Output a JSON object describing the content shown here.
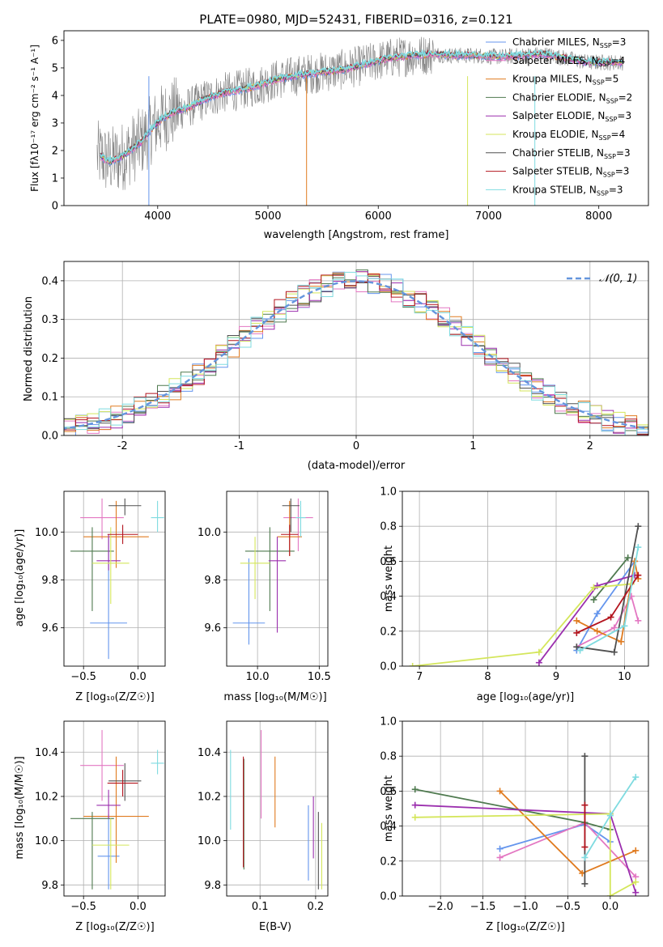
{
  "colors": {
    "chabrier_miles": "#6495ed",
    "salpeter_miles": "#e377c2",
    "kroupa_miles": "#e07b20",
    "chabrier_elodie": "#4f7a4f",
    "salpeter_elodie": "#9b2fae",
    "kroupa_elodie": "#d4e65b",
    "chabrier_stelib": "#505050",
    "salpeter_stelib": "#b3141e",
    "kroupa_stelib": "#7fdbe0",
    "gaussian": "#6495dd"
  },
  "chart_data": [
    {
      "id": "spectrum",
      "type": "line",
      "title": "PLATE=0980, MJD=52431, FIBERID=0316, z=0.121",
      "xlabel": "wavelength [Angstrom, rest frame]",
      "ylabel": "Flux [fλ10⁻¹⁷ erg cm⁻² s⁻¹ A⁻¹]",
      "xlim": [
        3150,
        8450
      ],
      "ylim": [
        0,
        6.35
      ],
      "xticks": [
        4000,
        5000,
        6000,
        7000,
        8000
      ],
      "yticks": [
        0,
        1,
        2,
        3,
        4,
        5,
        6
      ],
      "continuum_x": [
        3480,
        3550,
        3650,
        3750,
        3850,
        3950,
        4050,
        4150,
        4300,
        4450,
        4600,
        4750,
        4900,
        5100,
        5300,
        5500,
        5700,
        5900,
        6100,
        6300,
        6500,
        6700,
        6900,
        7100,
        7300,
        7500,
        7700,
        7900,
        8200
      ],
      "continuum_y": [
        1.8,
        1.6,
        1.7,
        2.0,
        2.3,
        2.8,
        3.2,
        3.4,
        3.6,
        3.9,
        4.1,
        4.2,
        4.35,
        4.6,
        4.75,
        4.85,
        4.95,
        5.15,
        5.35,
        5.45,
        5.5,
        5.45,
        5.45,
        5.4,
        5.45,
        5.5,
        5.35,
        5.2,
        5.2
      ],
      "legend_position": "upper-right",
      "legend": [
        {
          "label": "Chabrier MILES, N",
          "sub": "SSP",
          "suffix": "=3",
          "color": "#6495ed"
        },
        {
          "label": "Salpeter MILES, N",
          "sub": "SSP",
          "suffix": "=4",
          "color": "#e377c2"
        },
        {
          "label": "Kroupa MILES, N",
          "sub": "SSP",
          "suffix": "=5",
          "color": "#e07b20"
        },
        {
          "label": "Chabrier ELODIE, N",
          "sub": "SSP",
          "suffix": "=2",
          "color": "#4f7a4f"
        },
        {
          "label": "Salpeter ELODIE, N",
          "sub": "SSP",
          "suffix": "=3",
          "color": "#9b2fae"
        },
        {
          "label": "Kroupa ELODIE, N",
          "sub": "SSP",
          "suffix": "=4",
          "color": "#d4e65b"
        },
        {
          "label": "Chabrier STELIB, N",
          "sub": "SSP",
          "suffix": "=3",
          "color": "#505050"
        },
        {
          "label": "Salpeter STELIB, N",
          "sub": "SSP",
          "suffix": "=3",
          "color": "#b3141e"
        },
        {
          "label": "Kroupa STELIB, N",
          "sub": "SSP",
          "suffix": "=3",
          "color": "#7fdbe0"
        }
      ]
    },
    {
      "id": "residuals",
      "type": "bar",
      "xlabel": "(data-model)/error",
      "ylabel": "Normed distribution",
      "xlim": [
        -2.5,
        2.5
      ],
      "ylim": [
        0,
        0.45
      ],
      "xticks": [
        -2,
        -1,
        0,
        1,
        2
      ],
      "yticks": [
        0.0,
        0.1,
        0.2,
        0.3,
        0.4
      ],
      "bin_width": 0.1,
      "grid": true,
      "gaussian_label": "𝒩(0, 1)",
      "legend_position": "upper-right"
    },
    {
      "id": "age_vs_z",
      "type": "scatter",
      "xlabel": "Z [log₁₀(Z/Z☉)]",
      "ylabel": "age  [log₁₀(age/yr)]",
      "xlim": [
        -0.68,
        0.25
      ],
      "ylim": [
        9.44,
        10.17
      ],
      "xticks": [
        -0.5,
        0.0
      ],
      "xticklabels": [
        "−0.5",
        "0.0"
      ],
      "yticks": [
        9.6,
        9.8,
        10.0
      ],
      "points": [
        {
          "x": -0.27,
          "y": 9.62,
          "xerr": 0.17,
          "ylo": 9.47,
          "yhi": 9.98,
          "color": "#6495ed"
        },
        {
          "x": -0.33,
          "y": 10.06,
          "xerr": 0.2,
          "ylo": 9.97,
          "yhi": 10.14,
          "color": "#e377c2"
        },
        {
          "x": -0.2,
          "y": 9.98,
          "xerr": 0.3,
          "ylo": 9.85,
          "yhi": 10.13,
          "color": "#e07b20"
        },
        {
          "x": -0.42,
          "y": 9.92,
          "xerr": 0.2,
          "ylo": 9.67,
          "yhi": 10.02,
          "color": "#4f7a4f"
        },
        {
          "x": -0.27,
          "y": 9.88,
          "xerr": 0.11,
          "ylo": 9.84,
          "yhi": 9.99,
          "color": "#9b2fae"
        },
        {
          "x": -0.25,
          "y": 9.87,
          "xerr": 0.17,
          "ylo": 9.7,
          "yhi": 10.02,
          "color": "#d4e65b"
        },
        {
          "x": -0.12,
          "y": 10.11,
          "xerr": 0.15,
          "ylo": 10.07,
          "yhi": 10.14,
          "color": "#505050"
        },
        {
          "x": -0.14,
          "y": 9.99,
          "xerr": 0.14,
          "ylo": 9.95,
          "yhi": 10.03,
          "color": "#b3141e"
        },
        {
          "x": 0.18,
          "y": 10.06,
          "xerr": 0.06,
          "ylo": 10.0,
          "yhi": 10.13,
          "color": "#7fdbe0"
        }
      ]
    },
    {
      "id": "age_vs_mass",
      "type": "scatter",
      "xlabel": "mass [log₁₀(M/M☉)]",
      "ylabel": "",
      "xlim": [
        9.75,
        10.57
      ],
      "ylim": [
        9.44,
        10.17
      ],
      "xticks": [
        10.0,
        10.5
      ],
      "xticklabels": [
        "10.0",
        "10.5"
      ],
      "yticks": [
        9.6,
        9.8,
        10.0
      ],
      "points": [
        {
          "x": 9.93,
          "y": 9.62,
          "xerr": 0.13,
          "ylo": 9.53,
          "yhi": 9.89,
          "color": "#6495ed"
        },
        {
          "x": 10.33,
          "y": 10.06,
          "xerr": 0.12,
          "ylo": 9.92,
          "yhi": 10.14,
          "color": "#e377c2"
        },
        {
          "x": 10.26,
          "y": 9.98,
          "xerr": 0.1,
          "ylo": 9.9,
          "yhi": 10.13,
          "color": "#e07b20"
        },
        {
          "x": 10.1,
          "y": 9.92,
          "xerr": 0.2,
          "ylo": 9.67,
          "yhi": 10.02,
          "color": "#4f7a4f"
        },
        {
          "x": 10.16,
          "y": 9.88,
          "xerr": 0.07,
          "ylo": 9.58,
          "yhi": 9.98,
          "color": "#9b2fae"
        },
        {
          "x": 9.98,
          "y": 9.87,
          "xerr": 0.12,
          "ylo": 9.72,
          "yhi": 9.98,
          "color": "#d4e65b"
        },
        {
          "x": 10.27,
          "y": 10.11,
          "xerr": 0.07,
          "ylo": 10.0,
          "yhi": 10.14,
          "color": "#505050"
        },
        {
          "x": 10.26,
          "y": 9.99,
          "xerr": 0.07,
          "ylo": 9.9,
          "yhi": 10.03,
          "color": "#b3141e"
        },
        {
          "x": 10.35,
          "y": 10.06,
          "xerr": 0.04,
          "ylo": 9.98,
          "yhi": 10.13,
          "color": "#7fdbe0"
        }
      ]
    },
    {
      "id": "weight_vs_age",
      "type": "line",
      "xlabel": "age  [log₁₀(age/yr)]",
      "ylabel": "mass weight",
      "xlim": [
        6.75,
        10.35
      ],
      "ylim": [
        0,
        1.0
      ],
      "xticks": [
        7,
        8,
        9,
        10
      ],
      "yticks": [
        0.0,
        0.2,
        0.4,
        0.6,
        0.8,
        1.0
      ],
      "series": [
        {
          "color": "#6495ed",
          "x": [
            9.3,
            9.6,
            10.15
          ],
          "y": [
            0.09,
            0.3,
            0.6
          ]
        },
        {
          "color": "#e377c2",
          "x": [
            9.3,
            9.85,
            10.1,
            10.2
          ],
          "y": [
            0.11,
            0.22,
            0.4,
            0.26
          ]
        },
        {
          "color": "#e07b20",
          "x": [
            9.3,
            9.6,
            9.95,
            10.15,
            10.2
          ],
          "y": [
            0.26,
            0.2,
            0.14,
            0.6,
            0.5
          ]
        },
        {
          "color": "#4f7a4f",
          "x": [
            9.55,
            10.05
          ],
          "y": [
            0.38,
            0.62
          ]
        },
        {
          "color": "#9b2fae",
          "x": [
            8.75,
            9.6,
            10.15
          ],
          "y": [
            0.02,
            0.46,
            0.52
          ]
        },
        {
          "color": "#d4e65b",
          "x": [
            6.9,
            8.75,
            9.55,
            10.1
          ],
          "y": [
            0.0,
            0.08,
            0.45,
            0.47
          ]
        },
        {
          "color": "#505050",
          "x": [
            9.3,
            9.85,
            10.2
          ],
          "y": [
            0.11,
            0.08,
            0.8
          ]
        },
        {
          "color": "#b3141e",
          "x": [
            9.3,
            9.8,
            10.2
          ],
          "y": [
            0.19,
            0.28,
            0.52
          ]
        },
        {
          "color": "#7fdbe0",
          "x": [
            9.35,
            10.0,
            10.2
          ],
          "y": [
            0.09,
            0.23,
            0.68
          ]
        }
      ]
    },
    {
      "id": "mass_vs_z",
      "type": "scatter",
      "xlabel": "Z [log₁₀(Z/Z☉)]",
      "ylabel": "mass [log₁₀(M/M☉)]",
      "xlim": [
        -0.68,
        0.25
      ],
      "ylim": [
        9.75,
        10.54
      ],
      "xticks": [
        -0.5,
        0.0
      ],
      "xticklabels": [
        "−0.5",
        "0.0"
      ],
      "yticks": [
        9.8,
        10.0,
        10.2,
        10.4
      ],
      "points": [
        {
          "x": -0.27,
          "y": 9.93,
          "xerr": 0.1,
          "ylo": 9.78,
          "yhi": 10.12,
          "color": "#6495ed"
        },
        {
          "x": -0.33,
          "y": 10.34,
          "xerr": 0.2,
          "ylo": 10.18,
          "yhi": 10.5,
          "color": "#e377c2"
        },
        {
          "x": -0.2,
          "y": 10.11,
          "xerr": 0.3,
          "ylo": 9.9,
          "yhi": 10.38,
          "color": "#e07b20"
        },
        {
          "x": -0.42,
          "y": 10.1,
          "xerr": 0.2,
          "ylo": 9.78,
          "yhi": 10.13,
          "color": "#4f7a4f"
        },
        {
          "x": -0.27,
          "y": 10.16,
          "xerr": 0.11,
          "ylo": 10.1,
          "yhi": 10.23,
          "color": "#9b2fae"
        },
        {
          "x": -0.25,
          "y": 9.98,
          "xerr": 0.17,
          "ylo": 9.78,
          "yhi": 10.1,
          "color": "#d4e65b"
        },
        {
          "x": -0.12,
          "y": 10.27,
          "xerr": 0.15,
          "ylo": 10.18,
          "yhi": 10.35,
          "color": "#505050"
        },
        {
          "x": -0.14,
          "y": 10.26,
          "xerr": 0.14,
          "ylo": 10.2,
          "yhi": 10.32,
          "color": "#b3141e"
        },
        {
          "x": 0.18,
          "y": 10.35,
          "xerr": 0.06,
          "ylo": 10.3,
          "yhi": 10.41,
          "color": "#7fdbe0"
        }
      ]
    },
    {
      "id": "mass_vs_ebv",
      "type": "scatter",
      "xlabel": "E(B-V)",
      "ylabel": "",
      "xlim": [
        0.04,
        0.222
      ],
      "ylim": [
        9.75,
        10.54
      ],
      "xticks": [
        0.1,
        0.2
      ],
      "xticklabels": [
        "0.1",
        "0.2"
      ],
      "yticks": [
        9.8,
        10.0,
        10.2,
        10.4
      ],
      "points": [
        {
          "x": 0.187,
          "ylo": 9.82,
          "yhi": 10.16,
          "color": "#6495ed"
        },
        {
          "x": 0.102,
          "ylo": 10.1,
          "yhi": 10.5,
          "color": "#e377c2"
        },
        {
          "x": 0.127,
          "ylo": 10.06,
          "yhi": 10.38,
          "color": "#e07b20"
        },
        {
          "x": 0.071,
          "ylo": 9.87,
          "yhi": 10.37,
          "color": "#4f7a4f"
        },
        {
          "x": 0.196,
          "ylo": 9.92,
          "yhi": 10.2,
          "color": "#9b2fae"
        },
        {
          "x": 0.211,
          "ylo": 9.78,
          "yhi": 10.08,
          "color": "#d4e65b"
        },
        {
          "x": 0.205,
          "ylo": 9.78,
          "yhi": 10.13,
          "color": "#505050"
        },
        {
          "x": 0.07,
          "ylo": 9.88,
          "yhi": 10.38,
          "color": "#b3141e"
        },
        {
          "x": 0.047,
          "ylo": 10.05,
          "yhi": 10.41,
          "color": "#7fdbe0"
        }
      ]
    },
    {
      "id": "weight_vs_z",
      "type": "line",
      "xlabel": "Z [log₁₀(Z/Z☉)]",
      "ylabel": "mass weight",
      "xlim": [
        -2.45,
        0.45
      ],
      "ylim": [
        0,
        1.0
      ],
      "xticks": [
        -2.0,
        -1.5,
        -1.0,
        -0.5,
        0.0
      ],
      "xticklabels": [
        "−2.0",
        "−1.5",
        "−1.0",
        "−0.5",
        "0.0"
      ],
      "yticks": [
        0.0,
        0.2,
        0.4,
        0.6,
        0.8,
        1.0
      ],
      "series": [
        {
          "color": "#6495ed",
          "x": [
            -1.3,
            -0.3,
            0.0
          ],
          "y": [
            0.27,
            0.41,
            0.31
          ]
        },
        {
          "color": "#e377c2",
          "x": [
            -1.3,
            -0.3,
            0.3
          ],
          "y": [
            0.22,
            0.42,
            0.11
          ]
        },
        {
          "color": "#e07b20",
          "x": [
            -1.3,
            -0.33,
            0.3
          ],
          "y": [
            0.6,
            0.13,
            0.26
          ]
        },
        {
          "color": "#4f7a4f",
          "x": [
            -2.3,
            -0.3,
            0.0
          ],
          "y": [
            0.61,
            0.42,
            0.38
          ]
        },
        {
          "color": "#9b2fae",
          "x": [
            -2.3,
            0.0,
            0.3
          ],
          "y": [
            0.52,
            0.47,
            0.02
          ]
        },
        {
          "color": "#d4e65b",
          "x": [
            -2.3,
            0.0,
            0.0,
            0.3
          ],
          "y": [
            0.45,
            0.47,
            0.0,
            0.08
          ]
        },
        {
          "color": "#505050",
          "x": [
            -0.3,
            -0.3
          ],
          "y": [
            0.07,
            0.8
          ]
        },
        {
          "color": "#b3141e",
          "x": [
            -0.3,
            -0.3
          ],
          "y": [
            0.28,
            0.52
          ]
        },
        {
          "color": "#7fdbe0",
          "x": [
            -0.3,
            0.0,
            0.3
          ],
          "y": [
            0.22,
            0.46,
            0.68
          ]
        }
      ]
    }
  ]
}
